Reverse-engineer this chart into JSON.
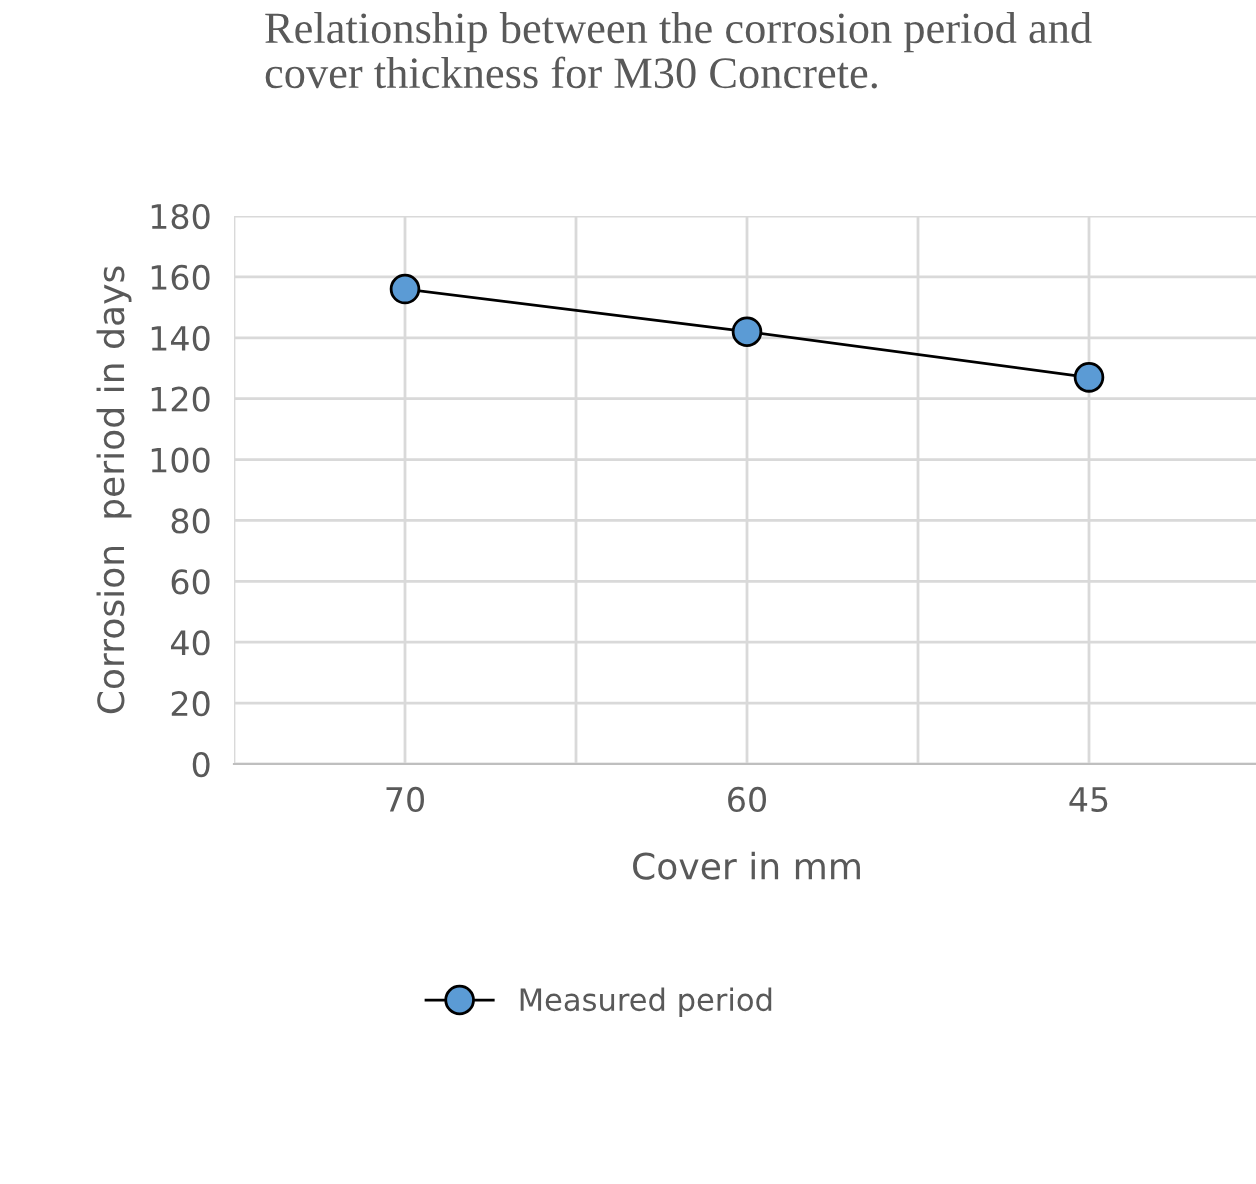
{
  "chart_data": {
    "type": "line",
    "title": "Relationship between the corrosion period and cover thickness for M30 Concrete.",
    "xlabel": "Cover in mm",
    "ylabel": "Corrosion  period in days",
    "categories": [
      "70",
      "60",
      "45"
    ],
    "series": [
      {
        "name": "Measured period",
        "color": "#5b9bd5",
        "values": [
          156,
          142,
          127
        ]
      }
    ],
    "ylim": [
      0,
      180
    ],
    "yticks": [
      0,
      20,
      40,
      60,
      80,
      100,
      120,
      140,
      160,
      180
    ],
    "grid": true,
    "legend": "bottom",
    "marker": "circle",
    "line_style": "solid"
  }
}
